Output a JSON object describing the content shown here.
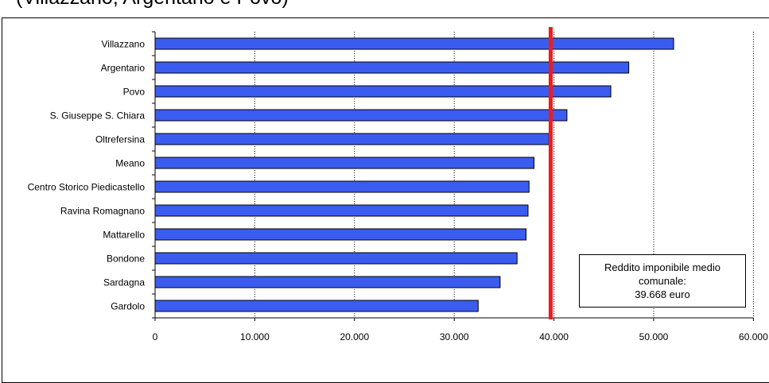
{
  "heading": "(Villazzano, Argentario e Povo)",
  "chart_data": {
    "type": "bar",
    "orientation": "horizontal",
    "categories": [
      "Villazzano",
      "Argentario",
      "Povo",
      "S. Giuseppe S. Chiara",
      "Oltrefersina",
      "Meano",
      "Centro Storico Piedicastello",
      "Ravina Romagnano",
      "Mattarello",
      "Bondone",
      "Sardagna",
      "Gardolo"
    ],
    "values": [
      52000,
      47500,
      45700,
      41300,
      39500,
      38000,
      37500,
      37400,
      37200,
      36300,
      34600,
      32400
    ],
    "xlim": [
      0,
      60000
    ],
    "xticks": [
      "0",
      "10.000",
      "20.000",
      "30.000",
      "40.000",
      "50.000",
      "60.000"
    ],
    "grid": "vertical dotted",
    "bar_color": "#3a5cf0",
    "reference_line": {
      "value": 39668,
      "color": "#ee1c1c",
      "label_lines": [
        "Reddito imponibile medio",
        "comunale:",
        "39.668 euro"
      ]
    }
  }
}
